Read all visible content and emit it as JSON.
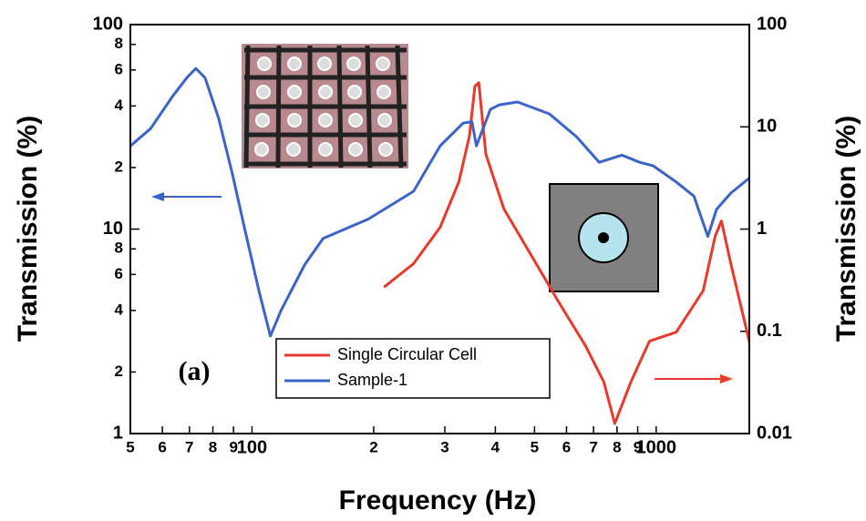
{
  "chart_data": {
    "type": "line",
    "x_label": "Frequency (Hz)",
    "y_label": "Transmission (%)",
    "y2_label": "Transmission (%)",
    "annotation": "(a)",
    "xscale": "log",
    "yscale": "log",
    "y2scale": "log",
    "xlim": [
      50,
      1700
    ],
    "ylim": [
      1,
      100
    ],
    "y2lim": [
      0.01,
      100
    ],
    "xticks": [
      {
        "value": 50,
        "label": "5"
      },
      {
        "value": 60,
        "label": "6"
      },
      {
        "value": 70,
        "label": "7"
      },
      {
        "value": 80,
        "label": "8"
      },
      {
        "value": 90,
        "label": "9"
      },
      100,
      {
        "value": 200,
        "label": "2"
      },
      {
        "value": 300,
        "label": "3"
      },
      {
        "value": 400,
        "label": "4"
      },
      {
        "value": 500,
        "label": "5"
      },
      {
        "value": 600,
        "label": "6"
      },
      {
        "value": 700,
        "label": "7"
      },
      {
        "value": 800,
        "label": "8"
      },
      {
        "value": 900,
        "label": "9"
      },
      1000
    ],
    "yticks": [
      1,
      {
        "value": 2,
        "label": "2"
      },
      {
        "value": 4,
        "label": "4"
      },
      {
        "value": 6,
        "label": "6"
      },
      {
        "value": 8,
        "label": "8"
      },
      10,
      {
        "value": 20,
        "label": "2"
      },
      {
        "value": 40,
        "label": "4"
      },
      {
        "value": 60,
        "label": "6"
      },
      {
        "value": 80,
        "label": "8"
      },
      100
    ],
    "y2ticks": [
      0.01,
      0.1,
      1,
      10,
      100
    ],
    "series": [
      {
        "name": "Single Circular Cell",
        "color": "#e8392a",
        "axis": "y2",
        "x": [
          212,
          251,
          292,
          325,
          345,
          356,
          364,
          379,
          420,
          490,
          571,
          669,
          742,
          790,
          866,
          962,
          1121,
          1307,
          1399,
          1450,
          1530,
          1710
        ],
        "values": [
          0.27,
          0.46,
          1.04,
          2.9,
          8.1,
          25,
          27,
          5.4,
          1.57,
          0.56,
          0.2,
          0.072,
          0.032,
          0.0125,
          0.032,
          0.08,
          0.098,
          0.25,
          0.85,
          1.2,
          0.46,
          0.072
        ]
      },
      {
        "name": "Sample-1",
        "color": "#3a64c8",
        "axis": "y",
        "x": [
          50,
          56.1,
          63.8,
          69,
          72.6,
          76.5,
          82.6,
          89.3,
          96.4,
          104,
          111,
          118,
          135,
          150,
          194,
          251,
          292,
          333,
          350,
          359,
          389,
          409,
          454,
          544,
          635,
          723,
          823,
          910,
          983,
          1121,
          1240,
          1342,
          1411,
          1530,
          1710
        ],
        "values": [
          25.5,
          31,
          45,
          55,
          61,
          55,
          35,
          18.8,
          9.6,
          5,
          3,
          4,
          6.7,
          9,
          11.2,
          15.3,
          25.5,
          33,
          33.5,
          25.5,
          38.5,
          40.5,
          41.8,
          36.6,
          28.3,
          21.2,
          23,
          21.2,
          20.4,
          17,
          14.5,
          9.2,
          12.5,
          15,
          17.9
        ]
      }
    ]
  }
}
